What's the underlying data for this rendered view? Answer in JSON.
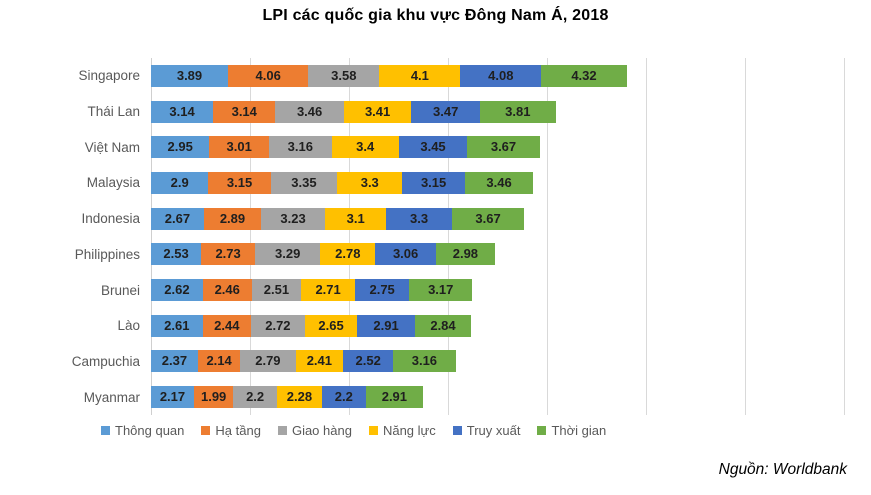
{
  "title": "LPI các quốc gia khu vực Đông Nam Á, 2018",
  "source": "Nguồn: Worldbank",
  "chart_data": {
    "type": "bar",
    "orientation": "horizontal",
    "stacked": true,
    "title": "LPI các quốc gia khu vực Đông Nam Á, 2018",
    "xlabel": "",
    "ylabel": "",
    "xlim": [
      0,
      35
    ],
    "gridline_interval": 5,
    "grid": true,
    "legend_position": "bottom",
    "data_labels": true,
    "categories": [
      "Singapore",
      "Thái Lan",
      "Việt Nam",
      "Malaysia",
      "Indonesia",
      "Philippines",
      "Brunei",
      "Lào",
      "Campuchia",
      "Myanmar"
    ],
    "series": [
      {
        "name": "Thông quan",
        "color": "#5B9BD5",
        "values": [
          3.89,
          3.14,
          2.95,
          2.9,
          2.67,
          2.53,
          2.62,
          2.61,
          2.37,
          2.17
        ]
      },
      {
        "name": "Hạ tầng",
        "color": "#ED7D31",
        "values": [
          4.06,
          3.14,
          3.01,
          3.15,
          2.89,
          2.73,
          2.46,
          2.44,
          2.14,
          1.99
        ]
      },
      {
        "name": "Giao hàng",
        "color": "#A5A5A5",
        "values": [
          3.58,
          3.46,
          3.16,
          3.35,
          3.23,
          3.29,
          2.51,
          2.72,
          2.79,
          2.2
        ]
      },
      {
        "name": "Năng lực",
        "color": "#FFC000",
        "values": [
          4.1,
          3.41,
          3.4,
          3.3,
          3.1,
          2.78,
          2.71,
          2.65,
          2.41,
          2.28
        ]
      },
      {
        "name": "Truy xuất",
        "color": "#4472C4",
        "values": [
          4.08,
          3.47,
          3.45,
          3.15,
          3.3,
          3.06,
          2.75,
          2.91,
          2.52,
          2.2
        ]
      },
      {
        "name": "Thời gian",
        "color": "#70AD47",
        "values": [
          4.32,
          3.81,
          3.67,
          3.46,
          3.67,
          2.98,
          3.17,
          2.84,
          3.16,
          2.91
        ]
      }
    ],
    "colors": {
      "gridline": "#D9D9D9",
      "category_label": "#595959",
      "data_label": "#1F1F1F",
      "legend_label": "#595959"
    }
  }
}
